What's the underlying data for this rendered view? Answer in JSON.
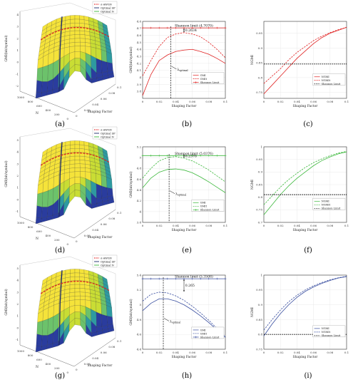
{
  "colors": {
    "red": "#e02020",
    "green": "#3cb83c",
    "blue": "#3a4fa0",
    "black": "#000000"
  },
  "panel_labels": [
    "(a)",
    "(b)",
    "(c)",
    "(d)",
    "(e)",
    "(f)",
    "(g)",
    "(h)",
    "(i)"
  ],
  "surface_panels": [
    {
      "label": "(a)",
      "zlabel": "GMI(bit/symbol)",
      "xlabel": "Shaping Factor",
      "ylabel": "N",
      "zticks": [
        "4",
        "3",
        "2",
        "1",
        "0",
        "-1",
        "-2"
      ],
      "nticks": [
        "1000",
        "800",
        "600",
        "400",
        "200",
        "0"
      ],
      "xticks": [
        "0",
        "0.02",
        "0.04",
        "0.06",
        "0.08",
        "0.1"
      ],
      "legend": [
        "σ-AWGN",
        "Optimal SF",
        "Optimal N"
      ],
      "legend_colors": [
        "#e02020",
        "#1b2a6b",
        "#3cb83c"
      ]
    },
    {
      "label": "(d)",
      "zlabel": "GMI(bit/symbol)",
      "xlabel": "Shaping Factor",
      "ylabel": "N",
      "zticks": [
        "5",
        "4",
        "3",
        "2",
        "1",
        "0",
        "-1"
      ],
      "nticks": [
        "1000",
        "800",
        "600",
        "400",
        "200",
        "0"
      ],
      "xticks": [
        "0",
        "0.02",
        "0.04",
        "0.06",
        "0.08",
        "0.1"
      ],
      "legend": [
        "σ-AWGN",
        "Optimal SF",
        "Optimal N"
      ],
      "legend_colors": [
        "#e02020",
        "#1b2a6b",
        "#3cb83c"
      ]
    },
    {
      "label": "(g)",
      "zlabel": "GMI(bit/symbol)",
      "xlabel": "Shaping Factor",
      "ylabel": "N",
      "zticks": [
        "5",
        "4",
        "3",
        "2",
        "1",
        "0",
        "-1"
      ],
      "nticks": [
        "1000",
        "800",
        "600",
        "400",
        "200",
        "0"
      ],
      "xticks": [
        "0",
        "0.02",
        "0.04",
        "0.06",
        "0.08",
        "0.1"
      ],
      "legend": [
        "σ-AWGN",
        "Optimal SF",
        "Optimal N"
      ],
      "legend_colors": [
        "#e02020",
        "#1b2a6b",
        "#3cb83c"
      ]
    }
  ],
  "chart_data": [
    {
      "type": "line",
      "panel": "(b)",
      "color": "#e02020",
      "xlabel": "Shaping Factor",
      "ylabel": "GMI(bit/symbol)",
      "xlim": [
        0,
        0.1
      ],
      "ylim": [
        3.7,
        4.8
      ],
      "xticks": [
        0,
        0.02,
        0.04,
        0.06,
        0.08,
        0.1
      ],
      "yticks": [
        3.8,
        3.9,
        4.0,
        4.1,
        4.2,
        4.3,
        4.4,
        4.5,
        4.6,
        4.7,
        4.8
      ],
      "x": [
        0,
        0.01,
        0.02,
        0.03,
        0.04,
        0.05,
        0.06,
        0.07,
        0.08,
        0.09,
        0.1
      ],
      "series": [
        {
          "name": "GMI",
          "style": "solid",
          "values": [
            3.74,
            4.04,
            4.24,
            4.32,
            4.37,
            4.39,
            4.4,
            4.37,
            4.33,
            4.27,
            4.2
          ]
        },
        {
          "name": "GMIt",
          "style": "dashed",
          "values": [
            4.02,
            4.24,
            4.44,
            4.57,
            4.62,
            4.64,
            4.62,
            4.58,
            4.5,
            4.4,
            4.28
          ]
        },
        {
          "name": "Shannon Limit",
          "style": "marker-plus",
          "values": [
            4.707,
            4.707,
            4.707,
            4.707,
            4.707,
            4.707,
            4.707,
            4.707,
            4.707,
            4.707,
            4.707
          ]
        }
      ],
      "optimal_x": 0.034,
      "annotations": [
        "Shannon limit (4.7070)",
        "0.2634",
        "λ_optimal"
      ]
    },
    {
      "type": "line",
      "panel": "(c)",
      "color": "#e02020",
      "xlabel": "Shaping Factor",
      "ylabel": "NGMI",
      "xlim": [
        0,
        0.1
      ],
      "ylim": [
        0.73,
        0.99
      ],
      "xticks": [
        0,
        0.02,
        0.04,
        0.06,
        0.08,
        0.1
      ],
      "yticks": [
        0.75,
        0.8,
        0.85,
        0.9,
        0.95
      ],
      "x": [
        0,
        0.01,
        0.02,
        0.03,
        0.04,
        0.05,
        0.06,
        0.07,
        0.08,
        0.09,
        0.1
      ],
      "series": [
        {
          "name": "NGMI",
          "style": "solid",
          "values": [
            0.745,
            0.775,
            0.805,
            0.835,
            0.865,
            0.89,
            0.915,
            0.935,
            0.95,
            0.96,
            0.97
          ]
        },
        {
          "name": "NGMIt",
          "style": "dashed",
          "values": [
            0.78,
            0.805,
            0.83,
            0.86,
            0.885,
            0.905,
            0.925,
            0.94,
            0.952,
            0.962,
            0.97
          ]
        },
        {
          "name": "Shannon Limit",
          "style": "dotted-black",
          "values": [
            0.846,
            0.846,
            0.846,
            0.846,
            0.846,
            0.846,
            0.846,
            0.846,
            0.846,
            0.846,
            0.846
          ]
        }
      ]
    },
    {
      "type": "line",
      "panel": "(e)",
      "color": "#3cb83c",
      "xlabel": "Shaping Factor",
      "ylabel": "GMI(bit/symbol)",
      "xlim": [
        0,
        0.1
      ],
      "ylim": [
        3.8,
        5.2
      ],
      "xticks": [
        0,
        0.02,
        0.04,
        0.06,
        0.08,
        0.1
      ],
      "yticks": [
        3.8,
        4.0,
        4.2,
        4.4,
        4.6,
        4.8,
        5.0,
        5.2
      ],
      "x": [
        0,
        0.01,
        0.02,
        0.03,
        0.04,
        0.05,
        0.06,
        0.07,
        0.08,
        0.09,
        0.1
      ],
      "series": [
        {
          "name": "GMI",
          "style": "solid",
          "values": [
            4.44,
            4.62,
            4.73,
            4.78,
            4.79,
            4.77,
            4.72,
            4.64,
            4.55,
            4.45,
            4.35
          ]
        },
        {
          "name": "GMIt",
          "style": "dashed",
          "values": [
            4.62,
            4.8,
            4.94,
            5.0,
            5.02,
            4.99,
            4.94,
            4.86,
            4.77,
            4.66,
            4.55
          ]
        },
        {
          "name": "Shannon Limit",
          "style": "marker-plus",
          "values": [
            5.0376,
            5.0376,
            5.0376,
            5.0376,
            5.0376,
            5.0376,
            5.0376,
            5.0376,
            5.0376,
            5.0376,
            5.0376
          ]
        }
      ],
      "optimal_x": 0.032,
      "annotations": [
        "Shannon limit (5.0376)",
        "0.2376",
        "λ_optimal"
      ]
    },
    {
      "type": "line",
      "panel": "(f)",
      "color": "#3cb83c",
      "xlabel": "Shaping Factor",
      "ylabel": "NGMI",
      "xlim": [
        0,
        0.1
      ],
      "ylim": [
        0.7,
        1.0
      ],
      "xticks": [
        0,
        0.02,
        0.04,
        0.06,
        0.08,
        0.1
      ],
      "yticks": [
        0.7,
        0.75,
        0.8,
        0.85,
        0.9,
        0.95,
        1.0
      ],
      "x": [
        0,
        0.01,
        0.02,
        0.03,
        0.04,
        0.05,
        0.06,
        0.07,
        0.08,
        0.09,
        0.1
      ],
      "series": [
        {
          "name": "NGMI",
          "style": "solid",
          "values": [
            0.73,
            0.77,
            0.81,
            0.845,
            0.875,
            0.9,
            0.925,
            0.945,
            0.96,
            0.972,
            0.98
          ]
        },
        {
          "name": "NGMIt",
          "style": "dashed",
          "values": [
            0.77,
            0.805,
            0.84,
            0.87,
            0.895,
            0.918,
            0.937,
            0.952,
            0.965,
            0.975,
            0.982
          ]
        },
        {
          "name": "Shannon Limit",
          "style": "dotted-black",
          "values": [
            0.81,
            0.81,
            0.81,
            0.81,
            0.81,
            0.81,
            0.81,
            0.81,
            0.81,
            0.81,
            0.81
          ]
        }
      ]
    },
    {
      "type": "line",
      "panel": "(h)",
      "color": "#3a4fa0",
      "xlabel": "Shaping Factor",
      "ylabel": "GMI(bit/symbol)",
      "xlim": [
        0,
        0.1
      ],
      "ylim": [
        4.4,
        5.4
      ],
      "xticks": [
        0,
        0.02,
        0.04,
        0.06,
        0.08,
        0.1
      ],
      "yticks": [
        4.4,
        4.6,
        4.8,
        5.0,
        5.2,
        5.4
      ],
      "x": [
        0,
        0.01,
        0.02,
        0.03,
        0.04,
        0.05,
        0.06,
        0.07,
        0.08,
        0.09,
        0.1
      ],
      "series": [
        {
          "name": "GMI",
          "style": "solid",
          "values": [
            4.92,
            5.02,
            5.08,
            5.08,
            5.05,
            5.0,
            4.93,
            4.85,
            4.76,
            4.66,
            4.56
          ]
        },
        {
          "name": "GMIt",
          "style": "dashed",
          "values": [
            5.05,
            5.14,
            5.17,
            5.16,
            5.12,
            5.06,
            4.98,
            4.89,
            4.79,
            4.68,
            4.57
          ]
        },
        {
          "name": "Shannon Limit",
          "style": "marker-plus",
          "values": [
            5.3508,
            5.3508,
            5.3508,
            5.3508,
            5.3508,
            5.3508,
            5.3508,
            5.3508,
            5.3508,
            5.3508,
            5.3508
          ]
        }
      ],
      "optimal_x": 0.025,
      "annotations": [
        "Shannon limit (5.3508)",
        "0.265",
        "λ_optimal"
      ]
    },
    {
      "type": "line",
      "panel": "(i)",
      "color": "#3a4fa0",
      "xlabel": "Shaping Factor",
      "ylabel": "NGMI",
      "xlim": [
        0,
        0.1
      ],
      "ylim": [
        0.75,
        1.0
      ],
      "xticks": [
        0,
        0.02,
        0.04,
        0.06,
        0.08,
        0.1
      ],
      "yticks": [
        0.75,
        0.8,
        0.85,
        0.9,
        0.95,
        1.0
      ],
      "x": [
        0,
        0.01,
        0.02,
        0.03,
        0.04,
        0.05,
        0.06,
        0.07,
        0.08,
        0.09,
        0.1
      ],
      "series": [
        {
          "name": "NGMI",
          "style": "solid",
          "values": [
            0.795,
            0.835,
            0.87,
            0.9,
            0.925,
            0.945,
            0.96,
            0.972,
            0.982,
            0.99,
            0.995
          ]
        },
        {
          "name": "NGMIt",
          "style": "dashed",
          "values": [
            0.815,
            0.85,
            0.882,
            0.91,
            0.932,
            0.95,
            0.964,
            0.975,
            0.984,
            0.991,
            0.996
          ]
        },
        {
          "name": "Shannon Limit",
          "style": "dotted-black",
          "values": [
            0.8,
            0.8,
            0.8,
            0.8,
            0.8,
            0.8,
            0.8,
            0.8,
            0.8,
            0.8,
            0.8
          ]
        }
      ]
    }
  ]
}
